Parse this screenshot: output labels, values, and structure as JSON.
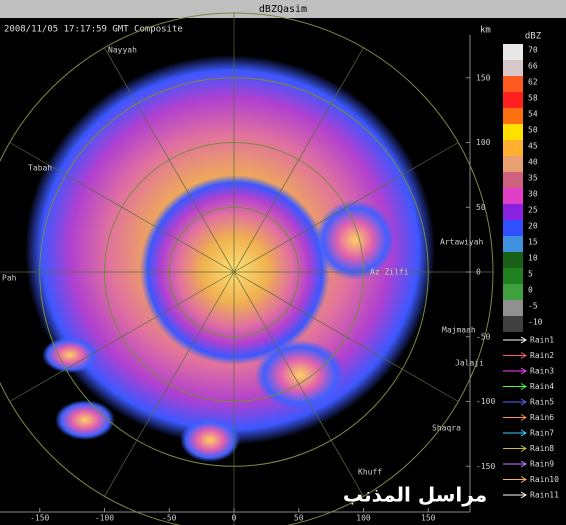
{
  "header": {
    "title": "dBZQasim",
    "timestamp": "2008/11/05 17:17:59 GMT Composite"
  },
  "axes": {
    "unit": "km",
    "x_ticks": [
      -150,
      -100,
      -50,
      0,
      50,
      100,
      150
    ],
    "y_ticks": [
      150,
      100,
      50,
      0,
      -50,
      -100,
      -150
    ]
  },
  "legend": {
    "title": "dBZ",
    "levels": [
      {
        "label": "70",
        "color": "#e8e8e8"
      },
      {
        "label": "66",
        "color": "#d8c8c8"
      },
      {
        "label": "62",
        "color": "#ff5a20"
      },
      {
        "label": "58",
        "color": "#ff2020"
      },
      {
        "label": "54",
        "color": "#ff7010"
      },
      {
        "label": "50",
        "color": "#ffe000"
      },
      {
        "label": "45",
        "color": "#ffb030"
      },
      {
        "label": "40",
        "color": "#e8a070"
      },
      {
        "label": "35",
        "color": "#d06080"
      },
      {
        "label": "30",
        "color": "#e040c8"
      },
      {
        "label": "25",
        "color": "#8a20e0"
      },
      {
        "label": "20",
        "color": "#3050ff"
      },
      {
        "label": "15",
        "color": "#4090e0"
      },
      {
        "label": "10",
        "color": "#186018"
      },
      {
        "label": "5",
        "color": "#208020"
      },
      {
        "label": "0",
        "color": "#40a040"
      },
      {
        "label": "-5",
        "color": "#909090"
      },
      {
        "label": "-10",
        "color": "#404040"
      }
    ]
  },
  "rain_legend": [
    "Rain1",
    "Rain2",
    "Rain3",
    "Rain4",
    "Rain5",
    "Rain6",
    "Rain7",
    "Rain8",
    "Rain9",
    "Rain10",
    "Rain11"
  ],
  "places": [
    "Nayyah",
    "Tabah",
    "Artawiyah",
    "Az Zilfi",
    "Majmaah",
    "Jalaji",
    "Shaqra",
    "Khuff",
    "Pah"
  ],
  "watermark": "مراسل المذنب"
}
